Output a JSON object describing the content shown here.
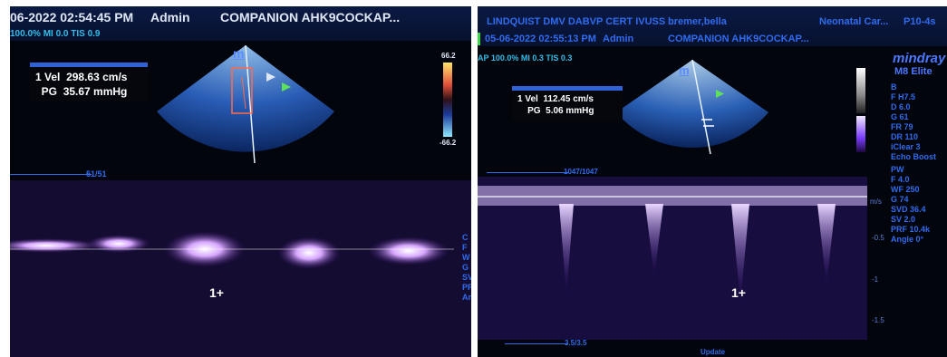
{
  "left_screen": {
    "datetime": "06-2022 02:54:45 PM",
    "user": "Admin",
    "study": "COMPANION AHK9COCKAP...",
    "power_line": "100.0% MI 0.0 TIS 0.9",
    "measure": {
      "index": "1",
      "vel_label": "Vel",
      "vel_value": "298.63 cm/s",
      "pg_label": "PG",
      "pg_value": "35.67 mmHg"
    },
    "colorbar": {
      "top": "66.2",
      "bottom": "-66.2"
    },
    "frame_counter": "51/51",
    "probe_marker": "m",
    "cursor_label": "1",
    "side_labels": [
      "C",
      "F",
      "W",
      "G",
      "SV",
      "PF",
      "An"
    ]
  },
  "right_screen": {
    "institution": "LINDQUIST DMV DABVP CERT IVUSS ...",
    "patient": "bremer,bella",
    "exam": "Neonatal Car...",
    "probe": "P10-4s",
    "datetime": "05-06-2022 02:55:13 PM",
    "user": "Admin",
    "study": "COMPANION AHK9COCKAP...",
    "power_line": "AP 100.0% MI 0.3 TIS 0.3",
    "brand": "mindray",
    "model": "M8 Elite",
    "measure": {
      "index": "1",
      "vel_label": "Vel",
      "vel_value": "112.45 cm/s",
      "pg_label": "PG",
      "pg_value": "5.06 mmHg"
    },
    "b_params": [
      "B",
      "F H7.5",
      "D 6.0",
      "G 61",
      "FR 79",
      "DR 110",
      "iClear 3",
      "Echo Boost"
    ],
    "pw_params": [
      "PW",
      "F 4.0",
      "WF 250",
      "G 74",
      "SVD 36.4",
      "SV 2.0",
      "PRF 10.4k",
      "Angle 0°"
    ],
    "frame_counter": "1047/1047",
    "bottom_counter": "3.5/3.5",
    "velocity_unit": "m/s",
    "scale_ticks": [
      "-0.5",
      "-1",
      "-1.5"
    ],
    "probe_marker": "m",
    "cursor_label": "1",
    "update_label": "Update"
  }
}
